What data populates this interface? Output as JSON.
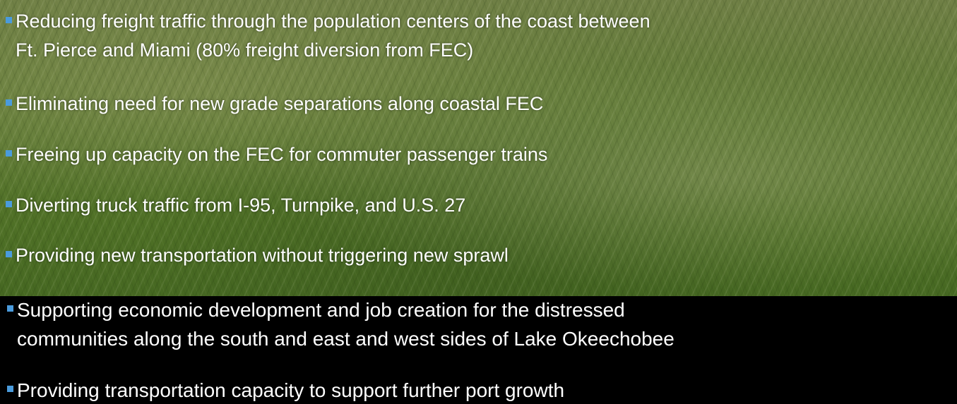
{
  "bullets": [
    [
      "Reducing freight traffic through the population centers of the coast between",
      "Ft. Pierce and Miami (80% freight diversion from FEC)"
    ],
    [
      "Eliminating need for new grade separations along coastal FEC"
    ],
    [
      "Freeing up capacity on the FEC for commuter passenger trains"
    ],
    [
      "Diverting truck traffic from I-95, Turnpike, and U.S. 27"
    ],
    [
      "Providing new transportation without triggering new sprawl"
    ],
    [
      "Supporting economic development and job creation for the distressed",
      "communities along the south and east and west sides of Lake Okeechobee"
    ],
    [
      "Providing transportation capacity to support further port growth"
    ]
  ]
}
